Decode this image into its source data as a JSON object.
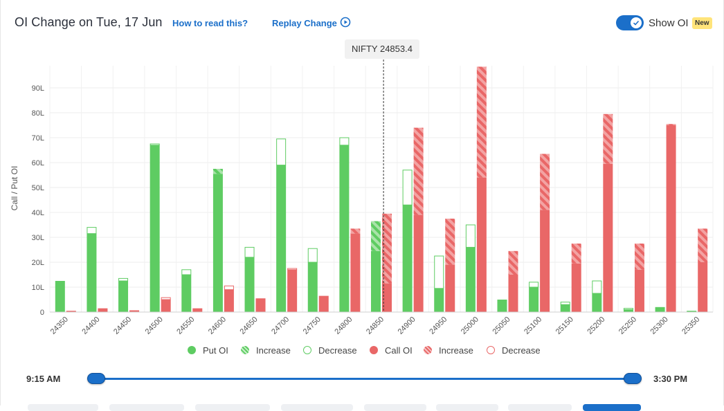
{
  "header": {
    "title": "OI Change on Tue, 17 Jun",
    "how_to_read": "How to read this?",
    "replay": "Replay Change",
    "show_oi_label": "Show OI",
    "show_oi_on": true,
    "new_badge": "New"
  },
  "spot_label": "NIFTY 24853.4",
  "colors": {
    "put": "#5ecc62",
    "call": "#e96767",
    "put_increase_stripe": "#a9e3a9",
    "call_increase_stripe": "#f3a3a3",
    "accent": "#1b6fc9",
    "badge": "#ffe47a"
  },
  "chart_data": {
    "type": "bar",
    "ylabel": "Call / Put OI",
    "ylim": [
      0,
      98
    ],
    "yticks": [
      "0",
      "10L",
      "20L",
      "30L",
      "40L",
      "50L",
      "60L",
      "70L",
      "80L",
      "90L"
    ],
    "spot": 24853.4,
    "categories": [
      "24350",
      "24400",
      "24450",
      "24500",
      "24550",
      "24600",
      "24650",
      "24700",
      "24750",
      "24800",
      "24850",
      "24900",
      "24950",
      "25000",
      "25050",
      "25100",
      "25150",
      "25200",
      "25250",
      "25300",
      "25350"
    ],
    "series": [
      {
        "name": "Put OI",
        "base": [
          12.5,
          31.5,
          12.5,
          67,
          15,
          55.5,
          22,
          59,
          20,
          67,
          24.5,
          43,
          9.5,
          26,
          5,
          10,
          3,
          7.5,
          1,
          2,
          0.5
        ],
        "increase": [
          0,
          0,
          0,
          0,
          0,
          2,
          0,
          0,
          0,
          0,
          12,
          0,
          0,
          0,
          0,
          0,
          0,
          0,
          0,
          0,
          0
        ],
        "decrease": [
          0,
          2.5,
          1,
          0.5,
          2,
          0,
          4,
          10.5,
          5.5,
          3,
          0,
          14,
          13,
          9,
          0,
          2,
          1,
          5,
          0.5,
          0,
          0
        ]
      },
      {
        "name": "Call OI",
        "base": [
          0.5,
          1.5,
          0.7,
          5,
          1.5,
          9,
          5.5,
          17,
          6.5,
          31.5,
          11.5,
          39,
          19,
          54,
          15,
          41,
          19.5,
          59.5,
          17,
          75,
          20
        ],
        "increase": [
          0,
          0,
          0,
          0,
          0,
          0,
          0,
          0,
          0,
          2,
          28,
          35,
          18.5,
          44.5,
          9.5,
          22.5,
          8,
          20,
          10.5,
          0.5,
          13.5
        ],
        "decrease": [
          0,
          0,
          0,
          0.8,
          0,
          1.5,
          0,
          0.5,
          0,
          0,
          0,
          0,
          0,
          0,
          0,
          0,
          0,
          0,
          0,
          0,
          0
        ]
      }
    ],
    "legend": [
      {
        "label": "Put OI",
        "style": "put-solid"
      },
      {
        "label": "Increase",
        "style": "put-stripe"
      },
      {
        "label": "Decrease",
        "style": "put-outline"
      },
      {
        "label": "Call OI",
        "style": "call-solid"
      },
      {
        "label": "Increase",
        "style": "call-stripe"
      },
      {
        "label": "Decrease",
        "style": "call-outline"
      }
    ]
  },
  "slider": {
    "start": "9:15 AM",
    "end": "3:30 PM"
  }
}
